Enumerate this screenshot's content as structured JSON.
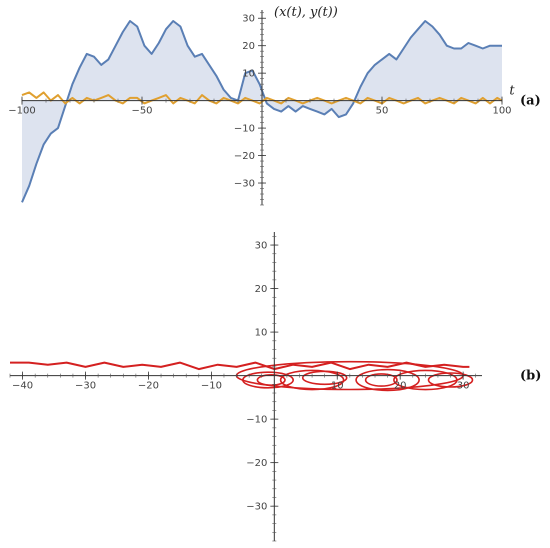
{
  "chart_data": [
    {
      "type": "line",
      "panel_label": "(a)",
      "xlabel": "t",
      "ylabel": "(x(t), y(t))",
      "xlim": [
        -100,
        100
      ],
      "ylim": [
        -38,
        33
      ],
      "x_ticks": [
        -100,
        -50,
        50,
        100
      ],
      "y_ticks": [
        -30,
        -20,
        -10,
        10,
        20,
        30
      ],
      "series": [
        {
          "color": "#5a7fb5",
          "fill": "#dde3ef",
          "x": [
            -100,
            -97,
            -94,
            -91,
            -88,
            -85,
            -82,
            -79,
            -76,
            -73,
            -70,
            -67,
            -64,
            -61,
            -58,
            -55,
            -52,
            -49,
            -46,
            -43,
            -40,
            -37,
            -34,
            -31,
            -28,
            -25,
            -22,
            -19,
            -16,
            -13,
            -10,
            -7,
            -4,
            -1,
            2,
            5,
            8,
            11,
            14,
            17,
            20,
            23,
            26,
            29,
            32,
            35,
            38,
            41,
            44,
            47,
            50,
            53,
            56,
            59,
            62,
            65,
            68,
            71,
            74,
            77,
            80,
            83,
            86,
            89,
            92,
            95,
            98,
            100
          ],
          "y": [
            -37,
            -31,
            -23,
            -16,
            -12,
            -10,
            -2,
            6,
            12,
            17,
            16,
            13,
            15,
            20,
            25,
            29,
            27,
            20,
            17,
            21,
            26,
            29,
            27,
            20,
            16,
            17,
            13,
            9,
            4,
            1,
            0,
            10,
            11,
            6,
            -1,
            -3,
            -4,
            -2,
            -4,
            -2,
            -3,
            -4,
            -5,
            -3,
            -6,
            -5,
            -1,
            5,
            10,
            13,
            15,
            17,
            15,
            19,
            23,
            26,
            29,
            27,
            24,
            20,
            19,
            19,
            21,
            20,
            19,
            20,
            20,
            20
          ]
        },
        {
          "color": "#e0a030",
          "x": [
            -100,
            -97,
            -94,
            -91,
            -88,
            -85,
            -82,
            -79,
            -76,
            -73,
            -70,
            -67,
            -64,
            -61,
            -58,
            -55,
            -52,
            -49,
            -46,
            -43,
            -40,
            -37,
            -34,
            -31,
            -28,
            -25,
            -22,
            -19,
            -16,
            -13,
            -10,
            -7,
            -4,
            -1,
            2,
            5,
            8,
            11,
            14,
            17,
            20,
            23,
            26,
            29,
            32,
            35,
            38,
            41,
            44,
            47,
            50,
            53,
            56,
            59,
            62,
            65,
            68,
            71,
            74,
            77,
            80,
            83,
            86,
            89,
            92,
            95,
            98,
            100
          ],
          "y": [
            2,
            3,
            1,
            3,
            0,
            2,
            -1,
            1,
            -1,
            1,
            0,
            1,
            2,
            0,
            -1,
            1,
            1,
            -1,
            0,
            1,
            2,
            -1,
            1,
            0,
            -1,
            2,
            0,
            -1,
            1,
            0,
            -1,
            1,
            0,
            -1,
            1,
            0,
            -1,
            1,
            0,
            -1,
            0,
            1,
            0,
            -1,
            0,
            1,
            0,
            -1,
            1,
            0,
            -1,
            1,
            0,
            -1,
            0,
            1,
            -1,
            0,
            1,
            0,
            -1,
            1,
            0,
            -1,
            1,
            -1,
            1,
            0
          ]
        }
      ]
    },
    {
      "type": "line",
      "panel_label": "(b)",
      "xlim": [
        -42,
        33
      ],
      "ylim": [
        -38,
        33
      ],
      "x_ticks": [
        -40,
        -30,
        -20,
        -10,
        10,
        20,
        30
      ],
      "y_ticks": [
        -30,
        -20,
        -10,
        10,
        20,
        30
      ],
      "series": [
        {
          "color": "#d42020",
          "x": [
            -42,
            -39,
            -36,
            -33,
            -30,
            -27,
            -24,
            -21,
            -18,
            -15,
            -12,
            -9,
            -6,
            -3,
            0,
            3,
            6,
            9,
            12,
            15,
            18,
            21,
            24,
            27,
            30,
            31
          ],
          "y": [
            3,
            3,
            2.5,
            3,
            2,
            3,
            2,
            2.5,
            2,
            3,
            1.5,
            2.5,
            2,
            3,
            1.5,
            2.5,
            2,
            3,
            1.5,
            2.5,
            2,
            3,
            2,
            2.5,
            2,
            2
          ],
          "loops": [
            {
              "cx": -1,
              "cy": -1,
              "rx": 4,
              "ry": 1.8
            },
            {
              "cx": -0.5,
              "cy": -1,
              "rx": 2.2,
              "ry": 1.2
            },
            {
              "cx": 6,
              "cy": -1,
              "rx": 5,
              "ry": 2.2
            },
            {
              "cx": 8,
              "cy": -0.5,
              "rx": 3.5,
              "ry": 1.5
            },
            {
              "cx": 18,
              "cy": -1,
              "rx": 5,
              "ry": 2.4
            },
            {
              "cx": 17,
              "cy": -1,
              "rx": 2.5,
              "ry": 1.4
            },
            {
              "cx": 24,
              "cy": -1,
              "rx": 5,
              "ry": 2.2
            },
            {
              "cx": 28,
              "cy": -1,
              "rx": 3.5,
              "ry": 1.6
            },
            {
              "cx": 12,
              "cy": 0,
              "rx": 18,
              "ry": 3.2
            }
          ]
        }
      ]
    }
  ]
}
